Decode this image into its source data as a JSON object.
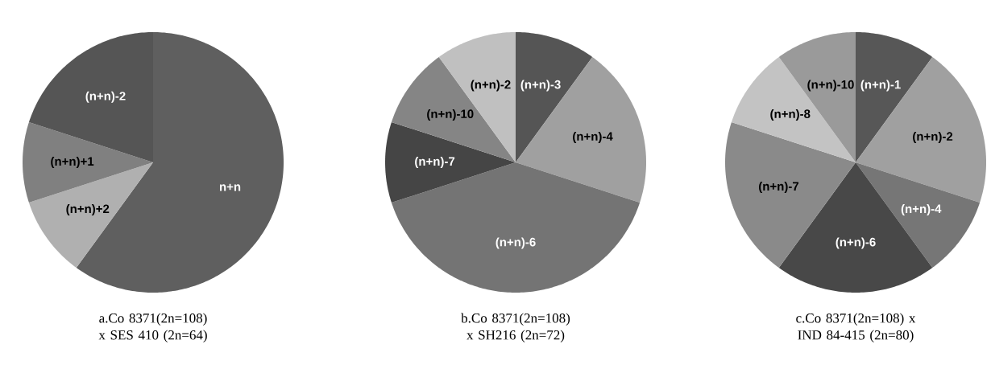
{
  "chart_data": [
    {
      "type": "pie",
      "title": "a.Co 8371(2n=108) x SES 410 (2n=64)",
      "categories": [
        "n+n",
        "(n+n)+2",
        "(n+n)+1",
        "(n+n)-2"
      ],
      "values": [
        60,
        10,
        10,
        20
      ],
      "colors": [
        "#5f5f5f",
        "#b0b0b0",
        "#808080",
        "#555555"
      ]
    },
    {
      "type": "pie",
      "title": "b.Co 8371(2n=108) x SH216 (2n=72)",
      "categories": [
        "(n+n)-3",
        "(n+n)-4",
        "(n+n)-6",
        "(n+n)-7",
        "(n+n)-10",
        "(n+n)-2"
      ],
      "values": [
        10,
        20,
        40,
        10,
        10,
        10
      ],
      "colors": [
        "#555555",
        "#a0a0a0",
        "#747474",
        "#454545",
        "#858585",
        "#c0c0c0"
      ]
    },
    {
      "type": "pie",
      "title": "c.Co 8371(2n=108) x IND 84-415 (2n=80)",
      "categories": [
        "(n+n)-1",
        "(n+n)-2",
        "(n+n)-4",
        "(n+n)-6",
        "(n+n)-7",
        "(n+n)-8",
        "(n+n)-10"
      ],
      "values": [
        10,
        20,
        10,
        20,
        20,
        10,
        10
      ],
      "colors": [
        "#575757",
        "#a0a0a0",
        "#767676",
        "#484848",
        "#8a8a8a",
        "#c3c3c3",
        "#9a9a9a"
      ]
    }
  ]
}
